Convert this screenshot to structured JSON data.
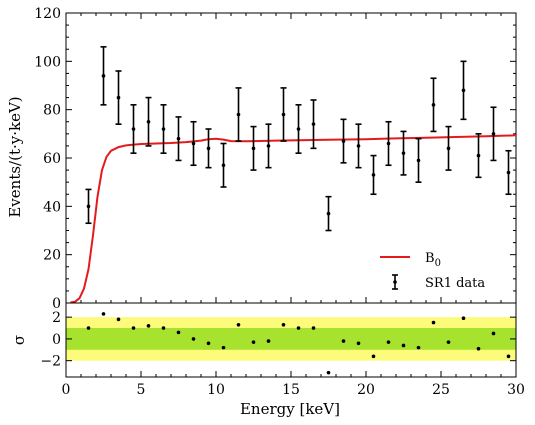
{
  "chart_data": {
    "type": "scatter",
    "panels": [
      "main",
      "residual"
    ],
    "xlabel": "Energy [keV]",
    "ylabel": "Events/(t·y·keV)",
    "residual_ylabel": "σ",
    "xlim": [
      0,
      30
    ],
    "ylim": [
      0,
      120
    ],
    "residual_ylim": [
      -3.5,
      3.3
    ],
    "x_ticks": [
      0,
      5,
      10,
      15,
      20,
      25,
      30
    ],
    "y_ticks": [
      0,
      20,
      40,
      60,
      80,
      100,
      120
    ],
    "residual_ticks": [
      -2,
      0,
      2
    ],
    "legend_position": "lower-right",
    "colors": {
      "model": "#e41a1c",
      "data": "#000000",
      "band_1sigma": "#a6e22e",
      "band_2sigma": "#fcfc7a"
    },
    "series": [
      {
        "name": "B",
        "name_subscript": "0",
        "kind": "line",
        "x": [
          0.3,
          0.6,
          0.9,
          1.2,
          1.5,
          1.8,
          2.1,
          2.4,
          2.7,
          3.0,
          3.5,
          4.0,
          5.0,
          6.0,
          7.0,
          8.0,
          9.0,
          9.5,
          10.0,
          10.5,
          11.0,
          12.0,
          14.0,
          16.0,
          18.0,
          20.0,
          22.0,
          24.0,
          26.0,
          28.0,
          30.0
        ],
        "y": [
          0.2,
          0.5,
          2.0,
          6.0,
          14.0,
          28.0,
          44.0,
          55.0,
          60.5,
          63.0,
          64.5,
          65.2,
          65.8,
          66.0,
          66.2,
          66.6,
          67.2,
          67.8,
          68.0,
          67.6,
          67.0,
          66.9,
          67.2,
          67.4,
          67.6,
          67.8,
          68.1,
          68.4,
          68.7,
          69.0,
          69.4
        ]
      },
      {
        "name": "SR1 data",
        "kind": "errorbar",
        "x": [
          1.5,
          2.5,
          3.5,
          4.5,
          5.5,
          6.5,
          7.5,
          8.5,
          9.5,
          10.5,
          11.5,
          12.5,
          13.5,
          14.5,
          15.5,
          16.5,
          17.5,
          18.5,
          19.5,
          20.5,
          21.5,
          22.5,
          23.5,
          24.5,
          25.5,
          26.5,
          27.5,
          28.5,
          29.5
        ],
        "y": [
          40,
          94,
          85,
          72,
          75,
          72,
          68,
          66,
          64,
          57,
          78,
          64,
          65,
          78,
          72,
          74,
          37,
          67,
          65,
          53,
          66,
          62,
          59,
          82,
          64,
          88,
          61,
          70,
          54
        ],
        "yerr": [
          7,
          12,
          11,
          10,
          10,
          10,
          9,
          9,
          8,
          9,
          11,
          9,
          9,
          11,
          10,
          10,
          7,
          9,
          9,
          8,
          9,
          9,
          9,
          11,
          9,
          12,
          9,
          11,
          9
        ]
      }
    ],
    "residuals": {
      "x": [
        1.5,
        2.5,
        3.5,
        4.5,
        5.5,
        6.5,
        7.5,
        8.5,
        9.5,
        10.5,
        11.5,
        12.5,
        13.5,
        14.5,
        15.5,
        16.5,
        17.5,
        18.5,
        19.5,
        20.5,
        21.5,
        22.5,
        23.5,
        24.5,
        25.5,
        26.5,
        27.5,
        28.5,
        29.5
      ],
      "y": [
        1.0,
        2.3,
        1.8,
        1.0,
        1.2,
        1.0,
        0.6,
        0.0,
        -0.4,
        -0.8,
        1.3,
        -0.3,
        -0.2,
        1.3,
        1.0,
        1.0,
        -3.1,
        -0.2,
        -0.4,
        -1.6,
        -0.3,
        -0.6,
        -0.8,
        1.5,
        -0.3,
        1.9,
        -0.9,
        0.5,
        -1.6
      ]
    }
  }
}
